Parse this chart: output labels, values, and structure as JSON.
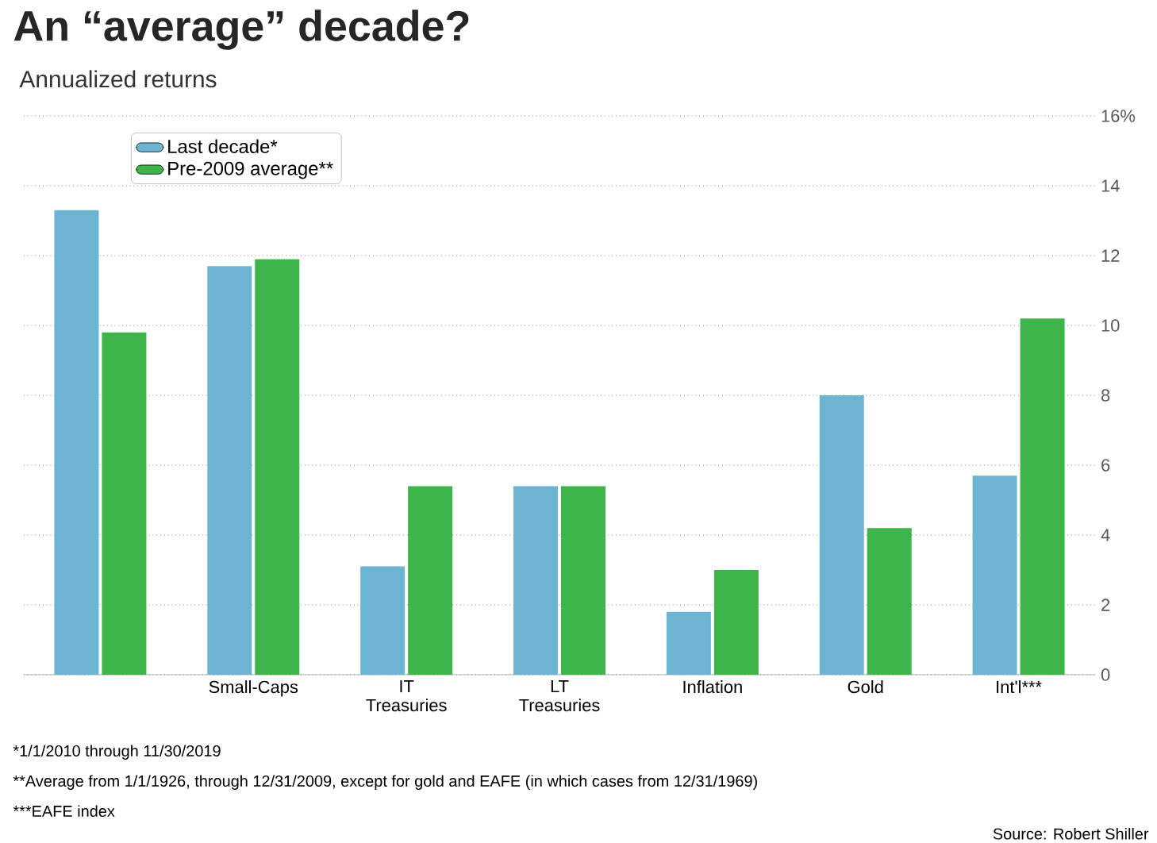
{
  "chart_data": {
    "type": "bar",
    "title": "An “average” decade?",
    "subtitle": "Annualized returns",
    "categories": [
      null,
      "Small-Caps",
      "IT Treasuries",
      "LT Treasuries",
      "Inflation",
      "Gold",
      "Int'l***"
    ],
    "series": [
      {
        "name": "Last decade*",
        "color": "#6db4d3",
        "values": [
          13.3,
          11.7,
          3.1,
          5.4,
          1.8,
          8.0,
          5.7
        ]
      },
      {
        "name": "Pre-2009 average**",
        "color": "#3db54a",
        "values": [
          9.8,
          11.9,
          5.4,
          5.4,
          3.0,
          4.2,
          10.2
        ]
      }
    ],
    "ylim": [
      0,
      16
    ],
    "yticks": [
      0,
      2,
      4,
      6,
      8,
      10,
      12,
      14,
      {
        "value": 16,
        "label": "16%"
      }
    ],
    "grid": "y",
    "legend": "top left",
    "annotations": [
      "*1/1/2010 through 11/30/2019",
      "**Average from 1/1/1926, through 12/31/2009, except for gold and EAFE (in which cases from 12/31/1969)",
      "***EAFE index",
      "Source: Robert Shiller"
    ]
  }
}
